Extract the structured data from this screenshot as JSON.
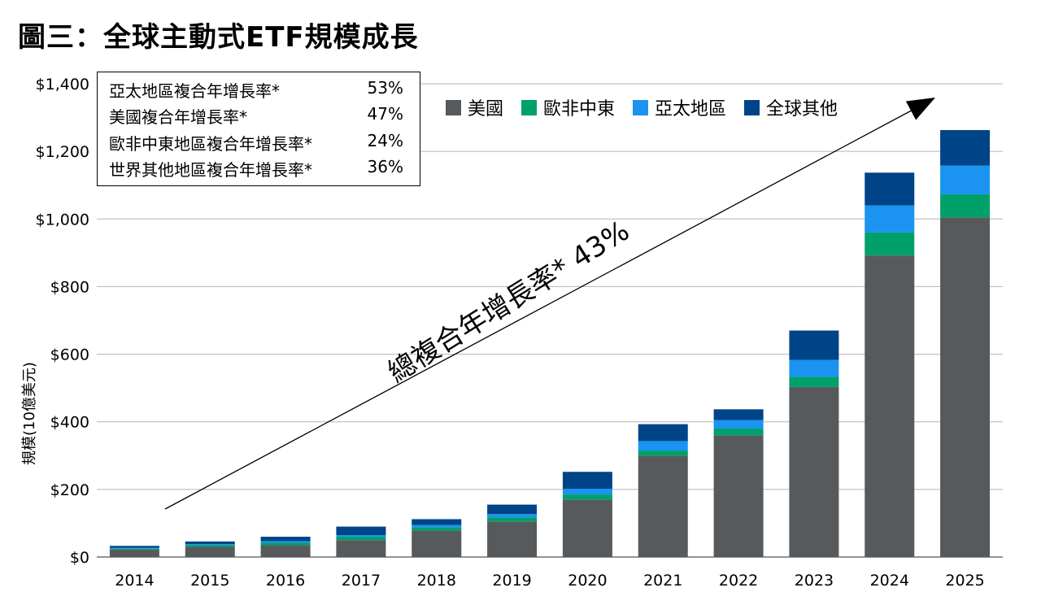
{
  "title": "圖三：全球主動式ETF規模成長",
  "stats_box": [
    {
      "label": "亞太地區複合年增長率*",
      "value": "53%"
    },
    {
      "label": "美國複合年增長率*",
      "value": "47%"
    },
    {
      "label": "歐非中東地區複合年增長率*",
      "value": "24%"
    },
    {
      "label": "世界其他地區複合年增長率*",
      "value": "36%"
    }
  ],
  "overall_cagr": "總複合年增長率* 43%",
  "colors": {
    "us": "#575a5d",
    "emea": "#00a06a",
    "apac": "#1a94f0",
    "other": "#004488"
  },
  "chart_data": {
    "type": "bar",
    "stacked": true,
    "title": "圖三：全球主動式ETF規模成長",
    "xlabel": "",
    "ylabel": "規模(10億美元)",
    "ylim": [
      0,
      1400
    ],
    "y_ticks": [
      "$0",
      "$200",
      "$400",
      "$600",
      "$800",
      "$1,000",
      "$1,200",
      "$1,400"
    ],
    "y_tick_values": [
      0,
      200,
      400,
      600,
      800,
      1000,
      1200,
      1400
    ],
    "grid": true,
    "legend_position": "top-right",
    "categories": [
      "2014",
      "2015",
      "2016",
      "2017",
      "2018",
      "2019",
      "2020",
      "2021",
      "2022",
      "2023",
      "2024",
      "2025"
    ],
    "series": [
      {
        "name": "美國",
        "color": "#575a5d",
        "values": [
          22,
          30,
          35,
          50,
          78,
          105,
          170,
          300,
          360,
          503,
          892,
          1005
        ]
      },
      {
        "name": "歐非中東",
        "color": "#00a06a",
        "values": [
          3,
          5,
          7,
          10,
          10,
          12,
          15,
          15,
          20,
          30,
          68,
          68
        ]
      },
      {
        "name": "亞太地區",
        "color": "#1a94f0",
        "values": [
          2,
          3,
          5,
          5,
          7,
          10,
          17,
          28,
          25,
          50,
          80,
          85
        ]
      },
      {
        "name": "全球其他",
        "color": "#004488",
        "values": [
          6,
          8,
          13,
          25,
          17,
          28,
          50,
          50,
          32,
          87,
          97,
          105
        ]
      }
    ]
  }
}
